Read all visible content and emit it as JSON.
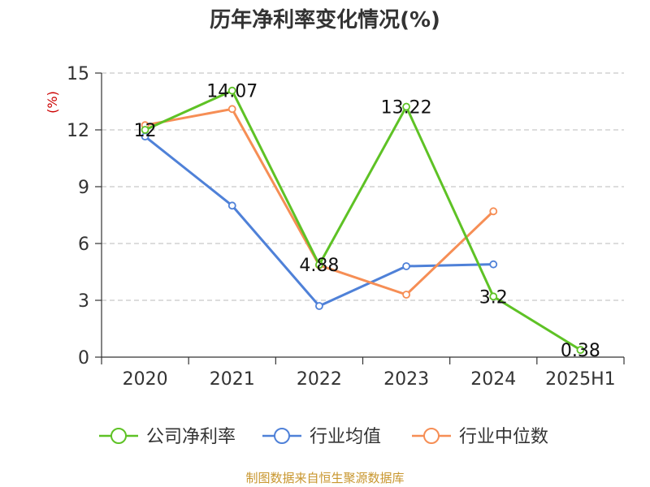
{
  "title": "历年净利率变化情况(%)",
  "source": "制图数据来自恒生聚源数据库",
  "chart_data": {
    "type": "line",
    "title": "历年净利率变化情况(%)",
    "ylabel": "(%)",
    "ylim": [
      0,
      15
    ],
    "yticks": [
      0,
      3,
      6,
      9,
      12,
      15
    ],
    "categories": [
      "2020",
      "2021",
      "2022",
      "2023",
      "2024",
      "2025H1"
    ],
    "grid": true,
    "legend_position": "bottom",
    "series": [
      {
        "name": "公司净利率",
        "color": "#5ec225",
        "values": [
          12,
          14.07,
          4.88,
          13.22,
          3.2,
          0.38
        ],
        "labels": [
          "12",
          "14.07",
          "4.88",
          "13.22",
          "3.2",
          "0.38"
        ]
      },
      {
        "name": "行业均值",
        "color": "#4f81d8",
        "values": [
          11.65,
          8.0,
          2.7,
          4.8,
          4.9,
          null
        ]
      },
      {
        "name": "行业中位数",
        "color": "#f68e55",
        "values": [
          12.25,
          13.1,
          4.85,
          3.3,
          7.7,
          null
        ]
      }
    ]
  }
}
